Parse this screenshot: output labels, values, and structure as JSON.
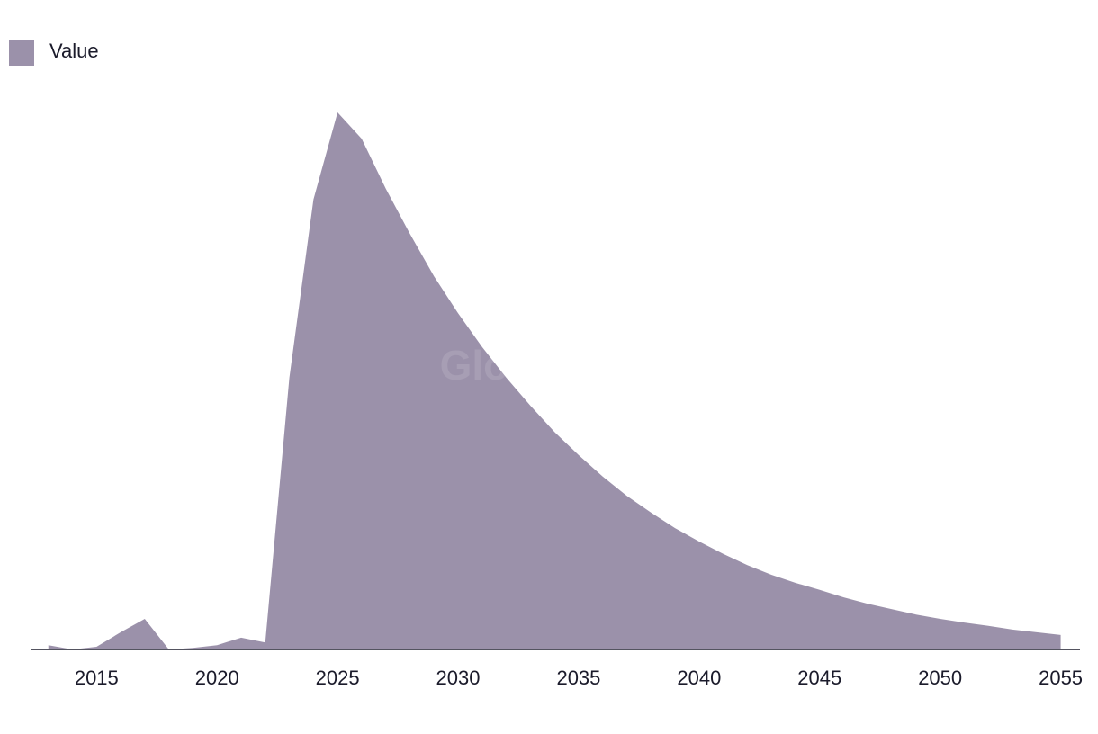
{
  "chart_data": {
    "type": "area",
    "watermark": "GlobalData",
    "x": [
      2013,
      2014,
      2015,
      2016,
      2017,
      2018,
      2019,
      2020,
      2021,
      2022,
      2023,
      2024,
      2025,
      2026,
      2027,
      2028,
      2029,
      2030,
      2031,
      2032,
      2033,
      2034,
      2035,
      2036,
      2037,
      2038,
      2039,
      2040,
      2041,
      2042,
      2043,
      2044,
      2045,
      2046,
      2047,
      2048,
      2049,
      2050,
      2051,
      2052,
      2053,
      2054,
      2055
    ],
    "series": [
      {
        "name": "Value",
        "color": "#9b91aa",
        "values": [
          0.8,
          0,
          0.5,
          3.2,
          5.7,
          0,
          0.3,
          0.8,
          2.2,
          1.3,
          50.6,
          83.8,
          100,
          95.1,
          85.8,
          77.4,
          69.5,
          62.6,
          56.3,
          50.6,
          45.4,
          40.5,
          36.2,
          32.2,
          28.6,
          25.5,
          22.6,
          20.1,
          17.8,
          15.7,
          13.9,
          12.4,
          11.1,
          9.7,
          8.5,
          7.5,
          6.5,
          5.7,
          5.0,
          4.4,
          3.7,
          3.2,
          2.7
        ]
      }
    ],
    "xlim": [
      2012.3,
      2055.8
    ],
    "xticks": [
      2015,
      2020,
      2025,
      2030,
      2035,
      2040,
      2045,
      2050,
      2055
    ],
    "ylim": [
      0,
      100
    ],
    "legend": "top-left"
  }
}
